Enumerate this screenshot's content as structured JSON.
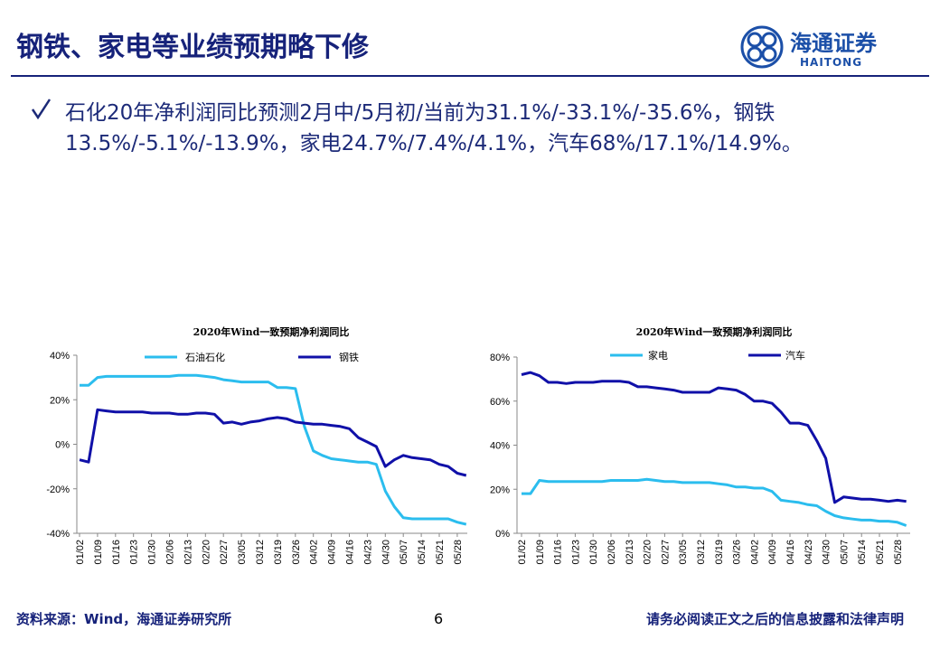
{
  "title": "钢铁、家电等业绩预期略下修",
  "logo": {
    "cn": "海通证券",
    "en": "HAITONG"
  },
  "bullet": [
    "石化20年净利润同比预测2月中/5月初/当前为31.1%/-33.1%/-35.6%，钢铁",
    "13.5%/-5.1%/-13.9%，家电24.7%/7.4%/4.1%，汽车68%/17.1%/14.9%。"
  ],
  "chart_data": [
    {
      "type": "line",
      "title": "2020年Wind一致预期净利润同比",
      "categories": [
        "01/02",
        null,
        "01/09",
        null,
        "01/16",
        null,
        "01/23",
        null,
        "01/30",
        null,
        "02/06",
        null,
        "02/13",
        null,
        "02/20",
        null,
        "02/27",
        null,
        "03/05",
        null,
        "03/12",
        null,
        "03/19",
        null,
        "03/26",
        null,
        "04/02",
        null,
        "04/09",
        null,
        "04/16",
        null,
        "04/23",
        null,
        "04/30",
        null,
        "05/07",
        null,
        "05/14",
        null,
        "05/21",
        null,
        "05/28",
        null
      ],
      "series": [
        {
          "name": "石油石化",
          "color": "#2bbdee",
          "values": [
            26.5,
            26.5,
            30,
            30.5,
            30.5,
            30.5,
            30.5,
            30.5,
            30.5,
            30.5,
            30.5,
            31,
            31,
            31,
            30.5,
            30,
            29,
            28.5,
            28,
            28,
            28,
            28,
            25.5,
            25.5,
            25,
            8,
            -3,
            -5,
            -6.5,
            -7,
            -7.5,
            -8,
            -8,
            -9,
            -21,
            -28,
            -33,
            -33.5,
            -33.5,
            -33.5,
            -33.5,
            -33.5,
            -35,
            -36
          ]
        },
        {
          "name": "钢铁",
          "color": "#1010a8",
          "values": [
            -7,
            -8,
            15.5,
            15,
            14.5,
            14.5,
            14.5,
            14.5,
            14,
            14,
            14,
            13.5,
            13.5,
            14,
            14,
            13.5,
            9.5,
            10,
            9,
            10,
            10.5,
            11.5,
            12,
            11.5,
            10,
            9.5,
            9,
            9,
            8.5,
            8,
            7,
            3,
            1,
            -1,
            -10,
            -7,
            -5,
            -6,
            -6.5,
            -7,
            -9,
            -10,
            -13,
            -14
          ]
        }
      ],
      "ylim": [
        -40,
        40
      ],
      "yticks": [
        {
          "value": -40,
          "label": "-40%"
        },
        {
          "value": -20,
          "label": "-20%"
        },
        {
          "value": 0,
          "label": "0%"
        },
        {
          "value": 20,
          "label": "20%"
        },
        {
          "value": 40,
          "label": "40%"
        }
      ],
      "grid": false,
      "legend": "top"
    },
    {
      "type": "line",
      "title": "2020年Wind一致预期净利润同比",
      "categories": [
        "01/02",
        null,
        "01/09",
        null,
        "01/16",
        null,
        "01/23",
        null,
        "01/30",
        null,
        "02/06",
        null,
        "02/13",
        null,
        "02/20",
        null,
        "02/27",
        null,
        "03/05",
        null,
        "03/12",
        null,
        "03/19",
        null,
        "03/26",
        null,
        "04/02",
        null,
        "04/09",
        null,
        "04/16",
        null,
        "04/23",
        null,
        "04/30",
        null,
        "05/07",
        null,
        "05/14",
        null,
        "05/21",
        null,
        "05/28",
        null
      ],
      "series": [
        {
          "name": "家电",
          "color": "#2bbdee",
          "values": [
            18,
            18,
            24,
            23.5,
            23.5,
            23.5,
            23.5,
            23.5,
            23.5,
            23.5,
            24,
            24,
            24,
            24,
            24.5,
            24,
            23.5,
            23.5,
            23,
            23,
            23,
            23,
            22.5,
            22,
            21,
            21,
            20.5,
            20.5,
            19,
            15,
            14.5,
            14,
            13,
            12.5,
            10,
            8,
            7,
            6.5,
            6,
            6,
            5.5,
            5.5,
            5,
            3.5
          ]
        },
        {
          "name": "汽车",
          "color": "#1010a8",
          "values": [
            72,
            73,
            71.5,
            68.5,
            68.5,
            68,
            68.5,
            68.5,
            68.5,
            69,
            69,
            69,
            68.5,
            66.5,
            66.5,
            66,
            65.5,
            65,
            64,
            64,
            64,
            64,
            66,
            65.5,
            65,
            63,
            60,
            60,
            59,
            55,
            50,
            50,
            49,
            42,
            34,
            14,
            16.5,
            16,
            15.5,
            15.5,
            15,
            14.5,
            15,
            14.5
          ]
        }
      ],
      "ylim": [
        0,
        80
      ],
      "yticks": [
        {
          "value": 0,
          "label": "0%"
        },
        {
          "value": 20,
          "label": "20%"
        },
        {
          "value": 40,
          "label": "40%"
        },
        {
          "value": 60,
          "label": "60%"
        },
        {
          "value": 80,
          "label": "80%"
        }
      ],
      "grid": false,
      "legend": "top"
    }
  ],
  "footer": {
    "source": "资料来源：Wind，海通证券研究所",
    "page": "6",
    "disclaimer": "请务必阅读正文之后的信息披露和法律声明"
  }
}
